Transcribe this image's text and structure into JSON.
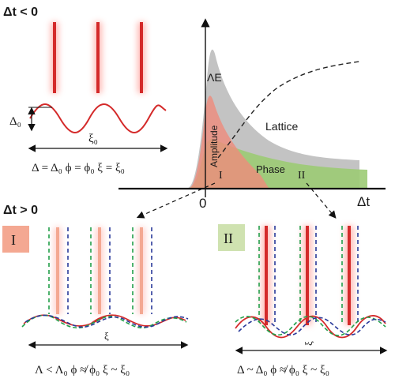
{
  "colors": {
    "red": "#d42a2a",
    "red_glow": "#ff9c94",
    "green_fill": "#8cc063",
    "green_dash": "#22a04a",
    "blue_dash": "#2a3a9a",
    "gray_fill": "#b9b9b9",
    "amp_fill": "#ef8b7c",
    "phase_fill": "#9ccb74",
    "panel1_box": "#f4a892",
    "panel2_box": "#cfe2b0"
  },
  "top_left": {
    "heading": "Δt < 0",
    "delta_label": "Δ₀",
    "xi_label": "ξ₀",
    "equation": "Δ = Δ₀   ϕ = ϕ₀   ξ = ξ₀"
  },
  "center_plot": {
    "y_label": "ΛE",
    "x_axis_label": "Δt",
    "zero_label": "0",
    "amplitude_label": "Amplitude",
    "phase_label": "Phase",
    "lattice_label": "Lattice",
    "marker_I": "I",
    "marker_II": "II"
  },
  "bottom": {
    "heading": "Δt > 0",
    "panel_I": {
      "badge": "I",
      "xi_label": "ξ",
      "equation": "Λ < Λ₀   ϕ ≉ ϕ₀   ξ ~ ξ₀"
    },
    "panel_II": {
      "badge": "II",
      "xi_label": "ξ",
      "equation": "Δ ~ Δ₀   ϕ ≉ ϕ₀   ξ ~ ξ₀"
    }
  }
}
